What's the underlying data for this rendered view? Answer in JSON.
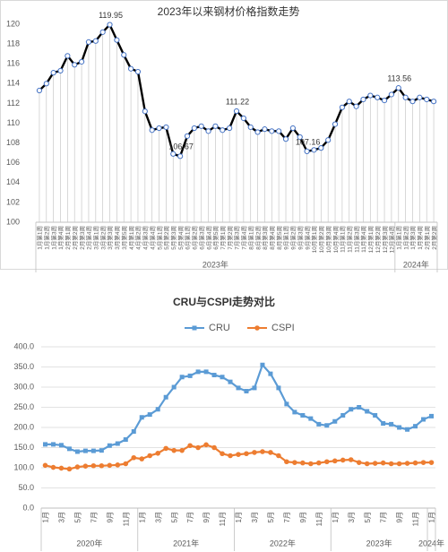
{
  "chart_data": [
    {
      "type": "line",
      "title": "2023年以来钢材价格指数走势",
      "color": "#000000",
      "marker": "circle",
      "marker_edge": "#4472c4",
      "droplines": true,
      "grid": false,
      "categories": [
        "1月第1周",
        "1月第2周",
        "1月第3周",
        "1月第4周",
        "2月第1周",
        "2月第2周",
        "2月第3周",
        "2月第4周",
        "3月第1周",
        "3月第2周",
        "3月第3周",
        "3月第4周",
        "3月第5周",
        "4月第1周",
        "4月第2周",
        "4月第3周",
        "4月第4周",
        "5月第1周",
        "5月第2周",
        "5月第3周",
        "5月第4周",
        "6月第1周",
        "6月第2周",
        "6月第3周",
        "6月第4周",
        "6月第5周",
        "7月第1周",
        "7月第2周",
        "7月第3周",
        "7月第4周",
        "8月第1周",
        "8月第2周",
        "8月第3周",
        "8月第4周",
        "8月第5周",
        "9月第1周",
        "9月第2周",
        "9月第3周",
        "9月第4周",
        "10月第1周",
        "10月第2周",
        "10月第3周",
        "10月第4周",
        "11月第1周",
        "11月第2周",
        "11月第3周",
        "11月第4周",
        "12月第1周",
        "12月第2周",
        "12月第3周",
        "12月第4周",
        "1月第1周",
        "1月第2周",
        "1月第3周",
        "1月第4周",
        "2月第1周",
        "2月第2周"
      ],
      "values": [
        113.3,
        114.0,
        115.1,
        115.3,
        116.8,
        115.9,
        116.2,
        118.2,
        118.3,
        119.2,
        119.95,
        118.4,
        116.9,
        115.5,
        115.2,
        111.2,
        109.3,
        109.5,
        109.6,
        106.9,
        106.67,
        108.7,
        109.5,
        109.7,
        109.2,
        109.7,
        109.3,
        109.5,
        111.22,
        110.5,
        109.6,
        109.1,
        109.4,
        109.2,
        109.2,
        108.4,
        109.5,
        108.6,
        107.16,
        107.3,
        107.5,
        108.3,
        109.9,
        111.6,
        112.2,
        111.7,
        112.4,
        112.8,
        112.6,
        112.3,
        112.9,
        113.56,
        112.6,
        112.2,
        112.6,
        112.4,
        112.2
      ],
      "value_labels": [
        null,
        null,
        null,
        null,
        null,
        null,
        null,
        null,
        null,
        null,
        "119.95",
        null,
        null,
        null,
        null,
        null,
        null,
        null,
        null,
        null,
        "106.67",
        null,
        null,
        null,
        null,
        null,
        null,
        null,
        "111.22",
        null,
        null,
        null,
        null,
        null,
        null,
        null,
        null,
        null,
        "107.16",
        null,
        null,
        null,
        null,
        null,
        null,
        null,
        null,
        null,
        null,
        null,
        null,
        "113.56",
        null,
        null,
        null,
        null,
        null
      ],
      "groups": [
        {
          "label": "2023年",
          "count": 51
        },
        {
          "label": "2024年",
          "count": 6
        }
      ],
      "ylim": [
        100,
        120
      ],
      "yticks": [
        100,
        102,
        104,
        106,
        108,
        110,
        112,
        114,
        116,
        118,
        120
      ]
    },
    {
      "type": "line",
      "title": "CRU与CSPI走势对比",
      "legend": "top",
      "grid": true,
      "categories": [
        "1月",
        null,
        "3月",
        null,
        "5月",
        null,
        "7月",
        null,
        "9月",
        null,
        "11月",
        null,
        "1月",
        null,
        "3月",
        null,
        "5月",
        null,
        "7月",
        null,
        "9月",
        null,
        "11月",
        null,
        "1月",
        null,
        "3月",
        null,
        "5月",
        null,
        "7月",
        null,
        "9月",
        null,
        "11月",
        null,
        "1月",
        null,
        "3月",
        null,
        "5月",
        null,
        "7月",
        null,
        "9月",
        null,
        "11月",
        null,
        "1月"
      ],
      "series": [
        {
          "name": "CRU",
          "color": "#5b9bd5",
          "marker": "square",
          "values": [
            158,
            158,
            156,
            147,
            140,
            142,
            142,
            143,
            155,
            160,
            170,
            190,
            225,
            232,
            245,
            275,
            300,
            325,
            328,
            338,
            338,
            330,
            325,
            313,
            298,
            290,
            298,
            355,
            333,
            298,
            258,
            238,
            230,
            222,
            208,
            205,
            215,
            230,
            245,
            250,
            240,
            230,
            210,
            208,
            200,
            195,
            203,
            220,
            228
          ]
        },
        {
          "name": "CSPI",
          "color": "#ed7d31",
          "marker": "circle",
          "values": [
            106,
            101,
            99,
            97,
            102,
            104,
            105,
            105,
            106,
            107,
            110,
            125,
            122,
            130,
            136,
            148,
            143,
            143,
            155,
            150,
            157,
            150,
            135,
            130,
            133,
            135,
            138,
            140,
            138,
            130,
            115,
            113,
            112,
            110,
            112,
            115,
            117,
            119,
            120,
            113,
            110,
            111,
            112,
            110,
            110,
            111,
            112,
            113,
            113
          ]
        }
      ],
      "groups": [
        {
          "label": "2020年",
          "count": 12
        },
        {
          "label": "2021年",
          "count": 12
        },
        {
          "label": "2022年",
          "count": 12
        },
        {
          "label": "2023年",
          "count": 12
        },
        {
          "label": "2024年",
          "count": 1
        }
      ],
      "ylim": [
        0,
        400
      ],
      "yticks": [
        {
          "value": 0,
          "label": "0.0"
        },
        {
          "value": 50,
          "label": "50.0"
        },
        {
          "value": 100,
          "label": "100.0"
        },
        {
          "value": 150,
          "label": "150.0"
        },
        {
          "value": 200,
          "label": "200.0"
        },
        {
          "value": 250,
          "label": "250.0"
        },
        {
          "value": 300,
          "label": "300.0"
        },
        {
          "value": 350,
          "label": "350.0"
        },
        {
          "value": 400,
          "label": "400.0"
        }
      ]
    }
  ]
}
